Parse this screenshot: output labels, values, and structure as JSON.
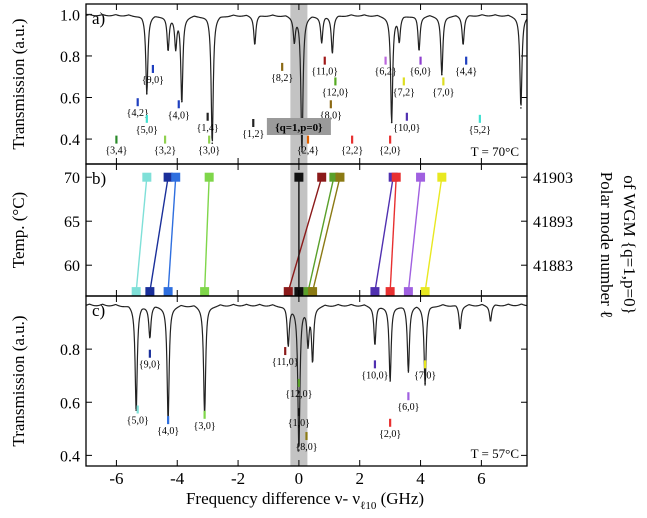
{
  "figure": {
    "xlabel": "Frequency difference  ν- ν",
    "xlabel_sub": "ℓ10",
    "xlabel_unit": "(GHz)",
    "xticks": [
      "-6",
      "-4",
      "-2",
      "0",
      "2",
      "4",
      "6"
    ],
    "right_label_1": "Polar mode number ℓ",
    "right_label_2": "of WGM {q=1,p=0}",
    "highlight_label": "{q=1,p=0}"
  },
  "chart_data": [
    {
      "type": "line",
      "panel": "a)",
      "title": "T = 70°C",
      "xlabel": "Frequency difference ν-ν_ℓ10 (GHz)",
      "ylabel": "Transmission (a.u.)",
      "xlim": [
        -7,
        7.5
      ],
      "ylim": [
        0.28,
        1.05
      ],
      "yticks": [
        "0.4",
        "0.6",
        "0.8",
        "1.0"
      ],
      "baseline": 1.0,
      "dips": [
        {
          "x": -5.0,
          "min": 0.62,
          "w": 0.04
        },
        {
          "x": -4.3,
          "min": 0.83,
          "w": 0.04
        },
        {
          "x": -4.05,
          "min": 0.85,
          "w": 0.04
        },
        {
          "x": -3.85,
          "min": 0.58,
          "w": 0.04
        },
        {
          "x": -2.85,
          "min": 0.38,
          "w": 0.04
        },
        {
          "x": -1.45,
          "min": 0.86,
          "w": 0.04
        },
        {
          "x": -0.15,
          "min": 0.88,
          "w": 0.04
        },
        {
          "x": 0.1,
          "min": 0.34,
          "w": 0.04
        },
        {
          "x": 0.75,
          "min": 0.87,
          "w": 0.04
        },
        {
          "x": 1.1,
          "min": 0.82,
          "w": 0.04
        },
        {
          "x": 3.05,
          "min": 0.48,
          "w": 0.04
        },
        {
          "x": 3.3,
          "min": 0.88,
          "w": 0.04
        },
        {
          "x": 3.95,
          "min": 0.83,
          "w": 0.04
        },
        {
          "x": 4.7,
          "min": 0.71,
          "w": 0.04
        },
        {
          "x": 5.4,
          "min": 0.86,
          "w": 0.04
        },
        {
          "x": 7.3,
          "min": 0.55,
          "w": 0.04
        }
      ],
      "labels": [
        {
          "text": "{3,4}",
          "x": -6.0,
          "y": 0.33,
          "color": "#2a8a2a"
        },
        {
          "text": "{4,2}",
          "x": -5.3,
          "y": 0.51,
          "color": "#1f3fbf"
        },
        {
          "text": "{5,0}",
          "x": -5.0,
          "y": 0.43,
          "color": "#40e0d0"
        },
        {
          "text": "{9,0}",
          "x": -4.8,
          "y": 0.67,
          "color": "#1f3fbf"
        },
        {
          "text": "{3,2}",
          "x": -4.4,
          "y": 0.33,
          "color": "#8fd14f"
        },
        {
          "text": "{4,0}",
          "x": -3.95,
          "y": 0.5,
          "color": "#1f3fbf"
        },
        {
          "text": "{1,4}",
          "x": -3.0,
          "y": 0.44,
          "color": "#222222"
        },
        {
          "text": "{3,0}",
          "x": -2.95,
          "y": 0.33,
          "color": "#8fd14f"
        },
        {
          "text": "{1,2}",
          "x": -1.5,
          "y": 0.41,
          "color": "#222222"
        },
        {
          "text": "{8,2}",
          "x": -0.55,
          "y": 0.68,
          "color": "#8b6914"
        },
        {
          "text": "{11,0}",
          "x": 0.85,
          "y": 0.71,
          "color": "#a01818"
        },
        {
          "text": "{2,4}",
          "x": 0.3,
          "y": 0.33,
          "color": "#e06000"
        },
        {
          "text": "{12,0}",
          "x": 1.2,
          "y": 0.61,
          "color": "#55aa22"
        },
        {
          "text": "{8,0}",
          "x": 1.05,
          "y": 0.5,
          "color": "#8b6914"
        },
        {
          "text": "{2,2}",
          "x": 1.75,
          "y": 0.33,
          "color": "#e83030"
        },
        {
          "text": "{6,2}",
          "x": 2.85,
          "y": 0.71,
          "color": "#bb66dd"
        },
        {
          "text": "{7,2}",
          "x": 3.45,
          "y": 0.61,
          "color": "#dddd22"
        },
        {
          "text": "{10,0}",
          "x": 3.55,
          "y": 0.44,
          "color": "#5030b0"
        },
        {
          "text": "{2,0}",
          "x": 3.0,
          "y": 0.33,
          "color": "#e83030"
        },
        {
          "text": "{6,0}",
          "x": 4.0,
          "y": 0.71,
          "color": "#9040d0"
        },
        {
          "text": "{7,0}",
          "x": 4.75,
          "y": 0.61,
          "color": "#dddd22"
        },
        {
          "text": "{4,4}",
          "x": 5.5,
          "y": 0.71,
          "color": "#1f3fbf"
        },
        {
          "text": "{5,2}",
          "x": 5.95,
          "y": 0.43,
          "color": "#40e0d0"
        }
      ]
    },
    {
      "type": "scatter",
      "panel": "b)",
      "xlim": [
        -7,
        7.5
      ],
      "ylim": [
        56.5,
        71.5
      ],
      "ylabel": "Temp. (°C)",
      "yticks": [
        "60",
        "65",
        "70"
      ],
      "right_ticks": [
        "41883",
        "41893",
        "41903"
      ],
      "right_tick_temps": [
        60,
        65,
        70
      ],
      "series": [
        {
          "name": "{5,0}",
          "color": "#7fe0d8",
          "x70": -5.0,
          "x57": -5.35
        },
        {
          "name": "{9,0}",
          "color": "#1a2f9a",
          "x70": -4.3,
          "x57": -4.9
        },
        {
          "name": "{4,0}",
          "color": "#2f6fdf",
          "x70": -4.05,
          "x57": -4.3
        },
        {
          "name": "{3,0}",
          "color": "#7fd64a",
          "x70": -2.95,
          "x57": -3.1
        },
        {
          "name": "{11,0}",
          "color": "#8b1a1a",
          "x70": 0.75,
          "x57": -0.35
        },
        {
          "name": "{1,0}",
          "color": "#111111",
          "x70": 0.0,
          "x57": 0.0
        },
        {
          "name": "{12,0}",
          "color": "#5aa02a",
          "x70": 1.15,
          "x57": 0.3
        },
        {
          "name": "{8,0}",
          "color": "#8b7a14",
          "x70": 1.35,
          "x57": 0.45
        },
        {
          "name": "{10,0}",
          "color": "#5030b0",
          "x70": 3.1,
          "x57": 2.5
        },
        {
          "name": "{2,0}",
          "color": "#e83030",
          "x70": 3.2,
          "x57": 3.0
        },
        {
          "name": "{6,0}",
          "color": "#a060e0",
          "x70": 4.0,
          "x57": 3.6
        },
        {
          "name": "{7,0}",
          "color": "#e8e820",
          "x70": 4.7,
          "x57": 4.15
        }
      ]
    },
    {
      "type": "line",
      "panel": "c)",
      "title": "T = 57°C",
      "ylabel": "Transmission (a.u.)",
      "xlim": [
        -7,
        7.5
      ],
      "ylim": [
        0.36,
        1.0
      ],
      "yticks": [
        "0.4",
        "0.6",
        "0.8"
      ],
      "baseline": 0.97,
      "dips": [
        {
          "x": -5.35,
          "min": 0.57,
          "w": 0.04
        },
        {
          "x": -4.9,
          "min": 0.85,
          "w": 0.04
        },
        {
          "x": -4.3,
          "min": 0.53,
          "w": 0.04
        },
        {
          "x": -3.1,
          "min": 0.55,
          "w": 0.04
        },
        {
          "x": -0.35,
          "min": 0.82,
          "w": 0.04
        },
        {
          "x": 0.0,
          "min": 0.42,
          "w": 0.04
        },
        {
          "x": 0.3,
          "min": 0.83,
          "w": 0.04
        },
        {
          "x": 0.45,
          "min": 0.76,
          "w": 0.04
        },
        {
          "x": 2.5,
          "min": 0.82,
          "w": 0.04
        },
        {
          "x": 3.0,
          "min": 0.68,
          "w": 0.04
        },
        {
          "x": 3.6,
          "min": 0.72,
          "w": 0.04
        },
        {
          "x": 4.15,
          "min": 0.67,
          "w": 0.04
        },
        {
          "x": 5.3,
          "min": 0.88,
          "w": 0.04
        },
        {
          "x": 6.3,
          "min": 0.91,
          "w": 0.04
        }
      ],
      "labels": [
        {
          "text": "{9,0}",
          "x": -4.9,
          "y": 0.73,
          "color": "#1a2f9a"
        },
        {
          "text": "{5,0}",
          "x": -5.3,
          "y": 0.52,
          "color": "#7fe0d8"
        },
        {
          "text": "{4,0}",
          "x": -4.3,
          "y": 0.48,
          "color": "#2f6fdf"
        },
        {
          "text": "{3,0}",
          "x": -3.1,
          "y": 0.5,
          "color": "#7fd64a"
        },
        {
          "text": "{11,0}",
          "x": -0.45,
          "y": 0.74,
          "color": "#8b1a1a"
        },
        {
          "text": "{12,0}",
          "x": 0.0,
          "y": 0.62,
          "color": "#5aa02a"
        },
        {
          "text": "{1,0}",
          "x": 0.0,
          "y": 0.51,
          "color": "#111111"
        },
        {
          "text": "{8,0}",
          "x": 0.25,
          "y": 0.42,
          "color": "#8b7a14"
        },
        {
          "text": "{10,0}",
          "x": 2.5,
          "y": 0.69,
          "color": "#5030b0"
        },
        {
          "text": "{2,0}",
          "x": 3.0,
          "y": 0.47,
          "color": "#e83030"
        },
        {
          "text": "{6,0}",
          "x": 3.6,
          "y": 0.57,
          "color": "#a060e0"
        },
        {
          "text": "{7,0}",
          "x": 4.15,
          "y": 0.69,
          "color": "#e8e820"
        }
      ]
    }
  ]
}
